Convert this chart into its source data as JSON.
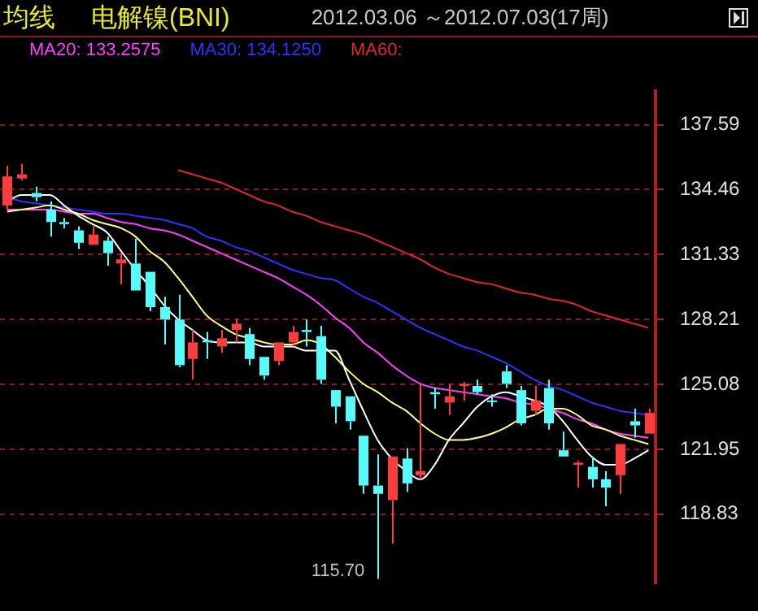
{
  "chart_data": {
    "type": "candlestick",
    "title": "均线",
    "subtitle": "电解镍(BNI)",
    "annotations": [
      "2012.03.06 ～2012.07.03(17周)",
      "115.70"
    ],
    "categories": [
      null,
      null,
      null,
      null,
      null,
      null,
      null,
      null,
      null,
      null,
      null,
      null,
      null,
      null,
      null,
      null,
      null,
      null,
      null,
      null,
      null,
      null,
      null,
      null,
      null,
      null,
      null,
      null,
      null,
      null,
      null,
      null,
      null,
      null,
      null,
      null,
      null,
      null,
      null,
      null,
      null,
      null,
      null,
      null,
      null,
      null
    ],
    "ohlc": [
      [
        133.7,
        135.6,
        133.5,
        135.1
      ],
      [
        135.0,
        135.7,
        134.9,
        135.2
      ],
      [
        134.3,
        134.6,
        133.9,
        134.1
      ],
      [
        133.5,
        133.9,
        132.2,
        132.9
      ],
      [
        132.9,
        133.1,
        132.6,
        132.8
      ],
      [
        132.5,
        132.7,
        131.6,
        131.9
      ],
      [
        131.8,
        132.7,
        131.8,
        132.3
      ],
      [
        132.0,
        132.2,
        130.8,
        131.4
      ],
      [
        130.9,
        131.4,
        129.9,
        131.1
      ],
      [
        130.9,
        132.1,
        129.6,
        129.6
      ],
      [
        130.5,
        130.5,
        128.6,
        128.8
      ],
      [
        128.8,
        129.3,
        127.0,
        128.2
      ],
      [
        128.2,
        129.4,
        125.9,
        126.0
      ],
      [
        126.3,
        127.7,
        125.3,
        127.1
      ],
      [
        127.2,
        127.6,
        126.3,
        127.1
      ],
      [
        126.9,
        127.7,
        126.6,
        127.3
      ],
      [
        127.7,
        128.2,
        127.1,
        128.0
      ],
      [
        127.5,
        127.8,
        126.0,
        126.3
      ],
      [
        126.4,
        126.4,
        125.3,
        125.5
      ],
      [
        126.2,
        127.1,
        126.0,
        127.1
      ],
      [
        127.1,
        127.9,
        126.9,
        127.6
      ],
      [
        127.7,
        128.2,
        126.9,
        127.6
      ],
      [
        127.4,
        127.9,
        125.1,
        125.3
      ],
      [
        124.8,
        124.8,
        123.2,
        124.0
      ],
      [
        124.5,
        124.5,
        122.9,
        123.3
      ],
      [
        122.6,
        122.6,
        119.8,
        120.2
      ],
      [
        120.2,
        121.7,
        115.7,
        119.8
      ],
      [
        119.5,
        121.6,
        117.4,
        121.6
      ],
      [
        121.5,
        122.0,
        119.9,
        120.3
      ],
      [
        120.7,
        125.1,
        120.5,
        120.9
      ],
      [
        124.7,
        124.9,
        123.9,
        124.6
      ],
      [
        124.2,
        125.1,
        123.6,
        124.5
      ],
      [
        125.0,
        125.2,
        124.3,
        125.1
      ],
      [
        125.0,
        125.3,
        124.6,
        124.7
      ],
      [
        124.3,
        124.6,
        124.0,
        124.3
      ],
      [
        125.7,
        126.0,
        124.9,
        125.1
      ],
      [
        124.8,
        125.0,
        123.1,
        123.2
      ],
      [
        123.8,
        125.0,
        123.6,
        124.3
      ],
      [
        124.9,
        125.3,
        122.9,
        123.2
      ],
      [
        121.9,
        122.8,
        121.6,
        121.6
      ],
      [
        121.2,
        121.4,
        120.1,
        121.3
      ],
      [
        121.1,
        121.6,
        120.1,
        120.5
      ],
      [
        120.5,
        120.9,
        119.2,
        120.1
      ],
      [
        120.7,
        122.2,
        119.8,
        122.2
      ],
      [
        123.3,
        123.9,
        122.5,
        123.1
      ],
      [
        122.7,
        123.9,
        122.7,
        123.7
      ]
    ],
    "colors": [
      "#ff3c3c",
      "#ff3c3c",
      "#54fcfc",
      "#54fcfc",
      "#54fcfc",
      "#54fcfc",
      "#ff3c3c",
      "#54fcfc",
      "#ff3c3c",
      "#54fcfc",
      "#54fcfc",
      "#54fcfc",
      "#54fcfc",
      "#ff3c3c",
      "#54fcfc",
      "#ff3c3c",
      "#ff3c3c",
      "#54fcfc",
      "#54fcfc",
      "#ff3c3c",
      "#ff3c3c",
      "#54fcfc",
      "#54fcfc",
      "#54fcfc",
      "#54fcfc",
      "#54fcfc",
      "#54fcfc",
      "#ff3c3c",
      "#54fcfc",
      "#ff3c3c",
      "#54fcfc",
      "#ff3c3c",
      "#ff3c3c",
      "#54fcfc",
      "#54fcfc",
      "#54fcfc",
      "#54fcfc",
      "#ff3c3c",
      "#54fcfc",
      "#54fcfc",
      "#ff3c3c",
      "#54fcfc",
      "#54fcfc",
      "#ff3c3c",
      "#54fcfc",
      "#ff3c3c"
    ],
    "series": [
      {
        "type": "line",
        "color": "#ffffff",
        "values": [
          133.9,
          134.2,
          134.2,
          134.2,
          133.7,
          133.2,
          132.8,
          132.4,
          131.5,
          130.6,
          129.8,
          128.9,
          128.2,
          127.7,
          127.2,
          127.1,
          127.1,
          127.1,
          126.9,
          126.9,
          126.9,
          126.7,
          126.7,
          126.7,
          125.3,
          123.8,
          122.4,
          121.5,
          120.9,
          120.5,
          121.2,
          122.4,
          123.2,
          124.0,
          124.5,
          124.7,
          124.5,
          124.3,
          124.0,
          123.3,
          122.4,
          121.6,
          121.2,
          121.2,
          121.5,
          121.9
        ]
      },
      {
        "type": "line",
        "color": "#ffff80",
        "values": [
          133.4,
          133.5,
          133.6,
          133.7,
          133.5,
          133.3,
          133.0,
          132.8,
          132.6,
          132.2,
          131.5,
          131.0,
          130.2,
          129.3,
          128.4,
          127.9,
          127.5,
          127.3,
          127.1,
          127.0,
          127.0,
          127.2,
          127.0,
          126.4,
          125.7,
          125.1,
          124.7,
          124.2,
          123.8,
          123.2,
          122.7,
          122.4,
          122.4,
          122.5,
          122.7,
          123.0,
          123.4,
          123.6,
          123.9,
          123.9,
          123.6,
          123.1,
          122.9,
          122.6,
          122.4,
          122.2
        ]
      },
      {
        "type": "line",
        "name": "MA20: 133.2575",
        "color": "#ff40ff",
        "values": [
          133.5,
          133.5,
          133.5,
          133.5,
          133.4,
          133.3,
          133.3,
          133.1,
          132.9,
          132.8,
          132.6,
          132.5,
          132.3,
          132.0,
          131.7,
          131.4,
          131.1,
          130.8,
          130.5,
          130.2,
          129.8,
          129.4,
          128.9,
          128.3,
          127.8,
          127.1,
          126.6,
          126.0,
          125.5,
          125.1,
          124.9,
          124.8,
          124.7,
          124.6,
          124.5,
          124.4,
          124.2,
          124.1,
          123.9,
          123.7,
          123.4,
          123.2,
          122.9,
          122.7,
          122.6,
          122.5
        ]
      },
      {
        "type": "line",
        "name": "MA30: 134.1250",
        "color": "#3030ff",
        "values": [
          134.1,
          133.9,
          133.8,
          133.7,
          133.6,
          133.5,
          133.4,
          133.3,
          133.3,
          133.2,
          133.1,
          133.0,
          132.8,
          132.6,
          132.2,
          132.0,
          131.7,
          131.5,
          131.2,
          130.9,
          130.6,
          130.4,
          130.2,
          130.1,
          129.7,
          129.3,
          129.0,
          128.6,
          128.2,
          127.8,
          127.5,
          127.2,
          126.9,
          126.7,
          126.4,
          126.1,
          125.7,
          125.3,
          125.0,
          124.8,
          124.5,
          124.2,
          124.0,
          123.8,
          123.7,
          123.6
        ]
      },
      {
        "type": "line",
        "name": "MA60:",
        "color": "#e02828",
        "values": [
          null,
          null,
          null,
          null,
          null,
          null,
          null,
          null,
          null,
          null,
          null,
          null,
          135.4,
          135.2,
          135.0,
          134.8,
          134.5,
          134.2,
          133.9,
          133.7,
          133.4,
          133.2,
          132.9,
          132.7,
          132.5,
          132.3,
          132.0,
          131.7,
          131.4,
          131.1,
          130.7,
          130.4,
          130.2,
          130.0,
          129.9,
          129.7,
          129.5,
          129.4,
          129.2,
          129.1,
          128.9,
          128.6,
          128.4,
          128.2,
          128.0,
          127.8
        ]
      }
    ],
    "ylim": [
      115.5,
      139.2
    ],
    "yticks": [
      118.83,
      121.95,
      125.08,
      128.21,
      131.33,
      134.46,
      137.59
    ],
    "grid": "y",
    "tick_labels": "y",
    "line_style": "solid",
    "marker": "none"
  }
}
